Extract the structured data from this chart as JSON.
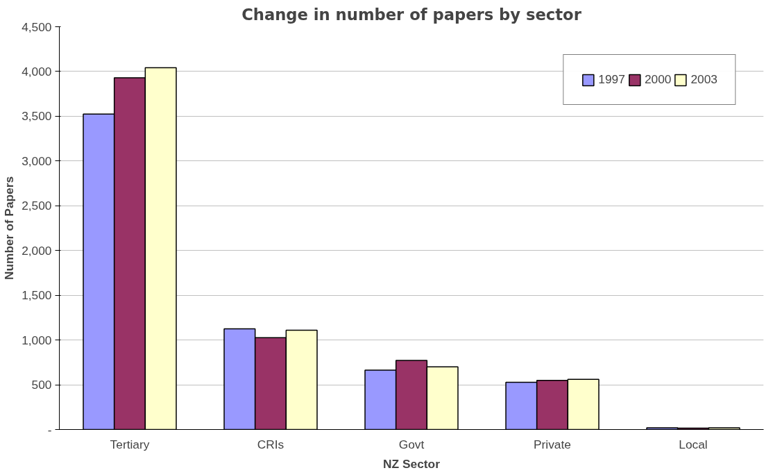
{
  "chart_data": {
    "type": "bar",
    "title": "Change in number of papers by sector",
    "xlabel": "NZ Sector",
    "ylabel": "Number of Papers",
    "categories": [
      "Tertiary",
      "CRIs",
      "Govt",
      "Private",
      "Local"
    ],
    "series": [
      {
        "name": "1997",
        "color": "#9999ff",
        "values": [
          3525,
          1125,
          663,
          527,
          20
        ]
      },
      {
        "name": "2000",
        "color": "#993366",
        "values": [
          3930,
          1027,
          772,
          549,
          15
        ]
      },
      {
        "name": "2003",
        "color": "#ffffcc",
        "values": [
          4042,
          1109,
          701,
          560,
          20
        ]
      }
    ],
    "ylim": [
      0,
      4500
    ],
    "yticks": [
      {
        "value": 0,
        "label": "-"
      },
      {
        "value": 500,
        "label": "500"
      },
      {
        "value": 1000,
        "label": "1,000"
      },
      {
        "value": 1500,
        "label": "1,500"
      },
      {
        "value": 2000,
        "label": "2,000"
      },
      {
        "value": 2500,
        "label": "2,500"
      },
      {
        "value": 3000,
        "label": "3,000"
      },
      {
        "value": 3500,
        "label": "3,500"
      },
      {
        "value": 4000,
        "label": "4,000"
      },
      {
        "value": 4500,
        "label": "4,500"
      }
    ],
    "grid": "y",
    "legend": "top right"
  }
}
